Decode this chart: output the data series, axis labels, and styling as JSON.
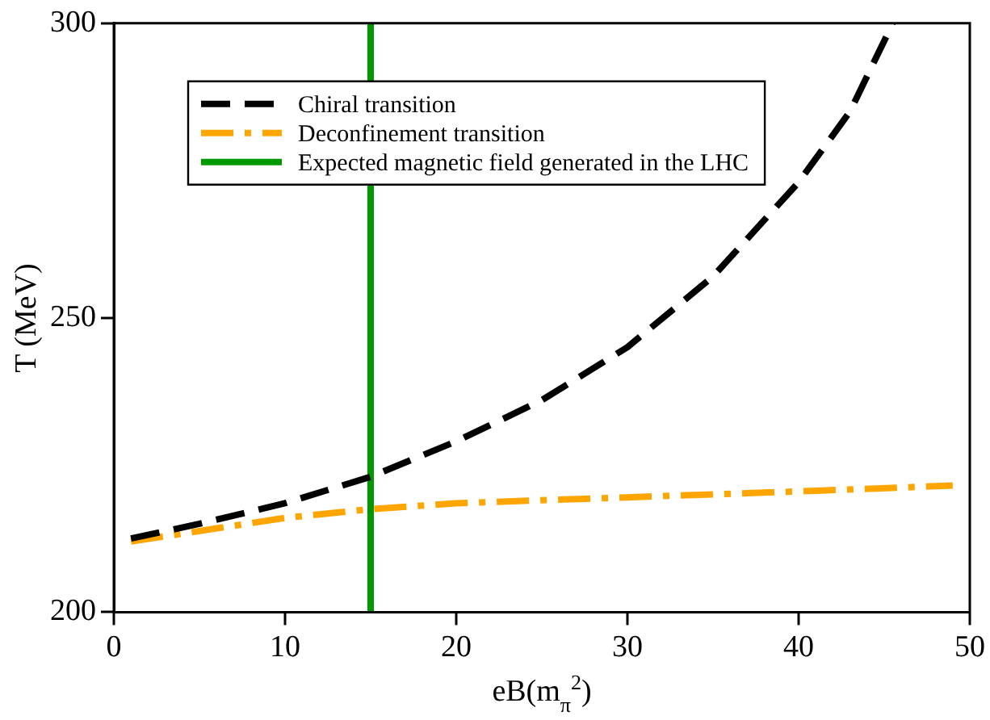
{
  "chart_data": {
    "type": "line",
    "xlabel": "eB(m$_{π}$$^{2}$)",
    "ylabel": "T (MeV)",
    "xlim": [
      0,
      50
    ],
    "xticks": [
      0,
      10,
      20,
      30,
      40,
      50
    ],
    "ylim": [
      200,
      300
    ],
    "yticks": [
      200,
      250,
      300
    ],
    "grid": false,
    "legend": "top left",
    "marker": "none",
    "series": [
      {
        "name": "Chiral transition",
        "color": "#000000",
        "line_style": "dashed",
        "x": [
          1,
          5,
          10,
          15,
          20,
          25,
          30,
          35,
          40,
          43,
          45.5
        ],
        "values": [
          212.5,
          215,
          218.5,
          223,
          229,
          236,
          245,
          257,
          273,
          285,
          300
        ]
      },
      {
        "name": "Deconfinement transition",
        "color": "#ffa500",
        "line_style": "dashdot",
        "x": [
          1,
          10,
          15,
          20,
          30,
          40,
          49
        ],
        "values": [
          212,
          216,
          217.5,
          218.5,
          219.5,
          220.5,
          221.5
        ]
      },
      {
        "name": "Expected magnetic field generated in the LHC",
        "color": "#009900",
        "line_style": "solid",
        "x": [
          15,
          15
        ],
        "values": [
          200,
          300
        ]
      }
    ]
  }
}
